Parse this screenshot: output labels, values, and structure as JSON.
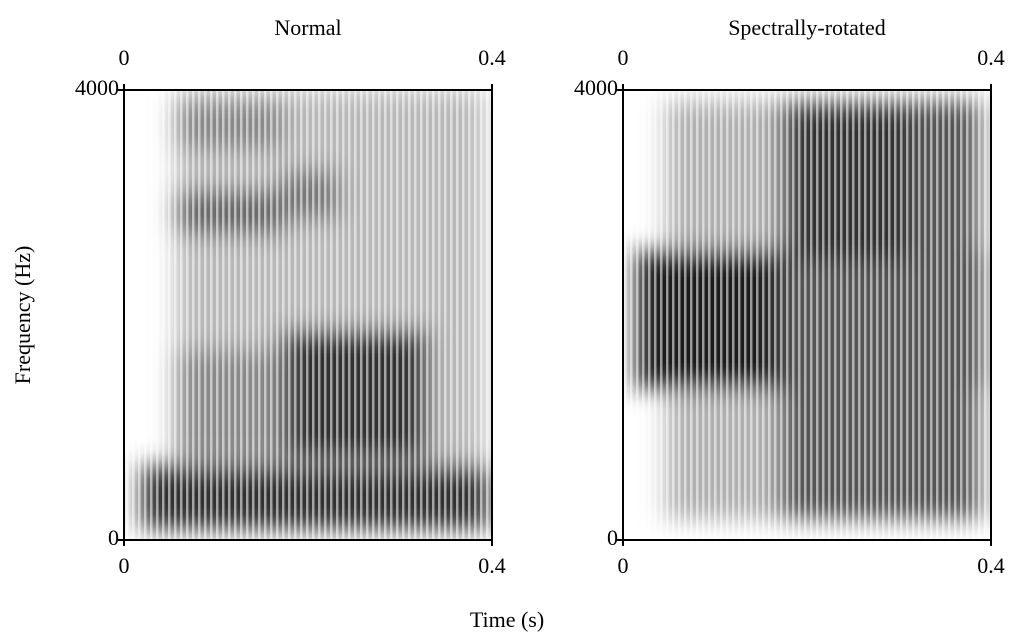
{
  "figure": {
    "xlabel": "Time (s)",
    "ylabel": "Frequency (Hz)"
  },
  "chart_data": [
    {
      "type": "spectrogram",
      "title": "Normal",
      "xlim": [
        0,
        0.4
      ],
      "xticks": [
        0,
        0.4
      ],
      "ylim": [
        0,
        4000
      ],
      "yticks": [
        0,
        4000
      ]
    },
    {
      "type": "spectrogram",
      "title": "Spectrally-rotated",
      "xlim": [
        0,
        0.4
      ],
      "xticks": [
        0,
        0.4
      ],
      "ylim": [
        0,
        4000
      ],
      "yticks": [
        0,
        4000
      ]
    }
  ]
}
